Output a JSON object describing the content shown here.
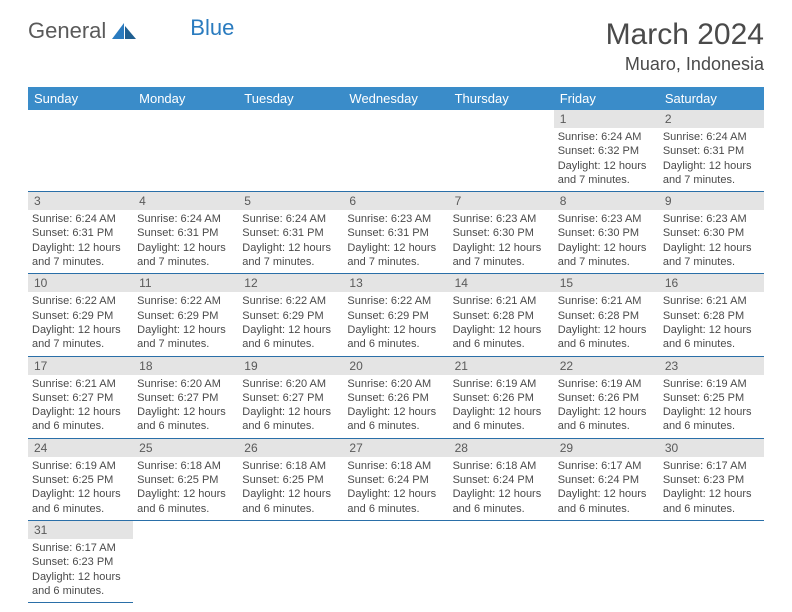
{
  "logo": {
    "text1": "General",
    "text2": "Blue"
  },
  "title": "March 2024",
  "subtitle": "Muaro, Indonesia",
  "columns": [
    "Sunday",
    "Monday",
    "Tuesday",
    "Wednesday",
    "Thursday",
    "Friday",
    "Saturday"
  ],
  "colors": {
    "header_bg": "#3a8cc9",
    "header_text": "#ffffff",
    "daynum_bg": "#e4e4e4",
    "row_border": "#2a6fa8",
    "logo_blue": "#2a7bbf",
    "text": "#4a4a4a"
  },
  "weeks": [
    [
      null,
      null,
      null,
      null,
      null,
      {
        "n": "1",
        "sr": "6:24 AM",
        "ss": "6:32 PM",
        "dl": "12 hours and 7 minutes."
      },
      {
        "n": "2",
        "sr": "6:24 AM",
        "ss": "6:31 PM",
        "dl": "12 hours and 7 minutes."
      }
    ],
    [
      {
        "n": "3",
        "sr": "6:24 AM",
        "ss": "6:31 PM",
        "dl": "12 hours and 7 minutes."
      },
      {
        "n": "4",
        "sr": "6:24 AM",
        "ss": "6:31 PM",
        "dl": "12 hours and 7 minutes."
      },
      {
        "n": "5",
        "sr": "6:24 AM",
        "ss": "6:31 PM",
        "dl": "12 hours and 7 minutes."
      },
      {
        "n": "6",
        "sr": "6:23 AM",
        "ss": "6:31 PM",
        "dl": "12 hours and 7 minutes."
      },
      {
        "n": "7",
        "sr": "6:23 AM",
        "ss": "6:30 PM",
        "dl": "12 hours and 7 minutes."
      },
      {
        "n": "8",
        "sr": "6:23 AM",
        "ss": "6:30 PM",
        "dl": "12 hours and 7 minutes."
      },
      {
        "n": "9",
        "sr": "6:23 AM",
        "ss": "6:30 PM",
        "dl": "12 hours and 7 minutes."
      }
    ],
    [
      {
        "n": "10",
        "sr": "6:22 AM",
        "ss": "6:29 PM",
        "dl": "12 hours and 7 minutes."
      },
      {
        "n": "11",
        "sr": "6:22 AM",
        "ss": "6:29 PM",
        "dl": "12 hours and 7 minutes."
      },
      {
        "n": "12",
        "sr": "6:22 AM",
        "ss": "6:29 PM",
        "dl": "12 hours and 6 minutes."
      },
      {
        "n": "13",
        "sr": "6:22 AM",
        "ss": "6:29 PM",
        "dl": "12 hours and 6 minutes."
      },
      {
        "n": "14",
        "sr": "6:21 AM",
        "ss": "6:28 PM",
        "dl": "12 hours and 6 minutes."
      },
      {
        "n": "15",
        "sr": "6:21 AM",
        "ss": "6:28 PM",
        "dl": "12 hours and 6 minutes."
      },
      {
        "n": "16",
        "sr": "6:21 AM",
        "ss": "6:28 PM",
        "dl": "12 hours and 6 minutes."
      }
    ],
    [
      {
        "n": "17",
        "sr": "6:21 AM",
        "ss": "6:27 PM",
        "dl": "12 hours and 6 minutes."
      },
      {
        "n": "18",
        "sr": "6:20 AM",
        "ss": "6:27 PM",
        "dl": "12 hours and 6 minutes."
      },
      {
        "n": "19",
        "sr": "6:20 AM",
        "ss": "6:27 PM",
        "dl": "12 hours and 6 minutes."
      },
      {
        "n": "20",
        "sr": "6:20 AM",
        "ss": "6:26 PM",
        "dl": "12 hours and 6 minutes."
      },
      {
        "n": "21",
        "sr": "6:19 AM",
        "ss": "6:26 PM",
        "dl": "12 hours and 6 minutes."
      },
      {
        "n": "22",
        "sr": "6:19 AM",
        "ss": "6:26 PM",
        "dl": "12 hours and 6 minutes."
      },
      {
        "n": "23",
        "sr": "6:19 AM",
        "ss": "6:25 PM",
        "dl": "12 hours and 6 minutes."
      }
    ],
    [
      {
        "n": "24",
        "sr": "6:19 AM",
        "ss": "6:25 PM",
        "dl": "12 hours and 6 minutes."
      },
      {
        "n": "25",
        "sr": "6:18 AM",
        "ss": "6:25 PM",
        "dl": "12 hours and 6 minutes."
      },
      {
        "n": "26",
        "sr": "6:18 AM",
        "ss": "6:25 PM",
        "dl": "12 hours and 6 minutes."
      },
      {
        "n": "27",
        "sr": "6:18 AM",
        "ss": "6:24 PM",
        "dl": "12 hours and 6 minutes."
      },
      {
        "n": "28",
        "sr": "6:18 AM",
        "ss": "6:24 PM",
        "dl": "12 hours and 6 minutes."
      },
      {
        "n": "29",
        "sr": "6:17 AM",
        "ss": "6:24 PM",
        "dl": "12 hours and 6 minutes."
      },
      {
        "n": "30",
        "sr": "6:17 AM",
        "ss": "6:23 PM",
        "dl": "12 hours and 6 minutes."
      }
    ],
    [
      {
        "n": "31",
        "sr": "6:17 AM",
        "ss": "6:23 PM",
        "dl": "12 hours and 6 minutes."
      },
      null,
      null,
      null,
      null,
      null,
      null
    ]
  ],
  "labels": {
    "sunrise": "Sunrise: ",
    "sunset": "Sunset: ",
    "daylight": "Daylight: "
  }
}
